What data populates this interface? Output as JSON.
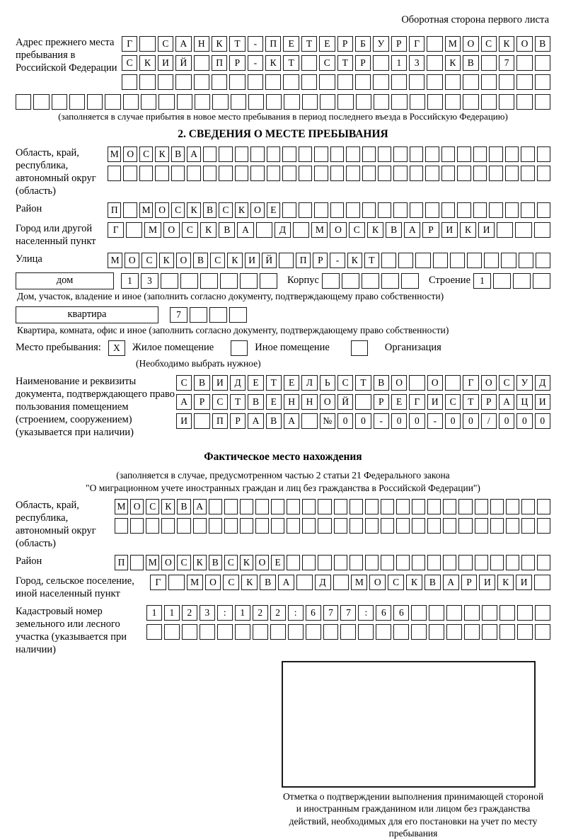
{
  "page": {
    "header_note": "Оборотная сторона первого листа"
  },
  "prev_address": {
    "label": "Адрес прежнего места пребывания в Российской Федерации",
    "rows": [
      [
        "Г",
        "",
        "С",
        "А",
        "Н",
        "К",
        "Т",
        "-",
        "П",
        "Е",
        "Т",
        "Е",
        "Р",
        "Б",
        "У",
        "Р",
        "Г",
        "",
        "М",
        "О",
        "С",
        "К",
        "О",
        "В"
      ],
      [
        "С",
        "К",
        "И",
        "Й",
        "",
        "П",
        "Р",
        "-",
        "К",
        "Т",
        "",
        "С",
        "Т",
        "Р",
        "",
        "1",
        "3",
        "",
        "К",
        "В",
        "",
        "7",
        "",
        ""
      ],
      [
        "",
        "",
        "",
        "",
        "",
        "",
        "",
        "",
        "",
        "",
        "",
        "",
        "",
        "",
        "",
        "",
        "",
        "",
        "",
        "",
        "",
        "",
        "",
        ""
      ]
    ],
    "full_row": [
      "",
      "",
      "",
      "",
      "",
      "",
      "",
      "",
      "",
      "",
      "",
      "",
      "",
      "",
      "",
      "",
      "",
      "",
      "",
      "",
      "",
      "",
      "",
      "",
      "",
      "",
      "",
      "",
      "",
      ""
    ],
    "note": "(заполняется в случае прибытия в новое место пребывания в период последнего въезда в Российскую Федерацию)"
  },
  "section2": {
    "title": "2. СВЕДЕНИЯ О МЕСТЕ ПРЕБЫВАНИЯ",
    "region": {
      "label": "Область, край, республика, автономный округ (область)",
      "rows": [
        [
          "М",
          "О",
          "С",
          "К",
          "В",
          "А",
          "",
          "",
          "",
          "",
          "",
          "",
          "",
          "",
          "",
          "",
          "",
          "",
          "",
          "",
          "",
          "",
          "",
          "",
          "",
          "",
          "",
          ""
        ],
        [
          "",
          "",
          "",
          "",
          "",
          "",
          "",
          "",
          "",
          "",
          "",
          "",
          "",
          "",
          "",
          "",
          "",
          "",
          "",
          "",
          "",
          "",
          "",
          "",
          "",
          "",
          "",
          ""
        ]
      ]
    },
    "district": {
      "label": "Район",
      "row": [
        "П",
        "",
        "М",
        "О",
        "С",
        "К",
        "В",
        "С",
        "К",
        "О",
        "Е",
        "",
        "",
        "",
        "",
        "",
        "",
        "",
        "",
        "",
        "",
        "",
        "",
        "",
        "",
        "",
        "",
        ""
      ]
    },
    "city": {
      "label": "Город или другой населенный пункт",
      "row": [
        "Г",
        "",
        "М",
        "О",
        "С",
        "К",
        "В",
        "А",
        "",
        "Д",
        "",
        "М",
        "О",
        "С",
        "К",
        "В",
        "А",
        "Р",
        "И",
        "К",
        "И",
        "",
        "",
        ""
      ]
    },
    "street": {
      "label": "Улица",
      "row": [
        "М",
        "О",
        "С",
        "К",
        "О",
        "В",
        "С",
        "К",
        "И",
        "Й",
        "",
        "П",
        "Р",
        "-",
        "К",
        "Т",
        "",
        "",
        "",
        "",
        "",
        "",
        "",
        "",
        "",
        ""
      ]
    },
    "house": {
      "house_label": "дом",
      "house_cells": [
        "1",
        "3",
        "",
        "",
        "",
        "",
        "",
        ""
      ],
      "korpus_label": "Корпус",
      "korpus_cells": [
        "",
        "",
        "",
        "",
        ""
      ],
      "stroenie_label": "Строение",
      "stroenie_cells": [
        "1",
        "",
        "",
        ""
      ]
    },
    "house_note": "Дом, участок, владение и иное (заполнить согласно документу, подтверждающему право собственности)",
    "apartment": {
      "label": "квартира",
      "cells": [
        "7",
        "",
        "",
        ""
      ]
    },
    "apartment_note": "Квартира, комната, офис и иное (заполнить согласно документу, подтверждающему право собственности)",
    "stay_type": {
      "label": "Место пребывания:",
      "options": [
        {
          "label": "Жилое помещение",
          "checked": "X"
        },
        {
          "label": "Иное помещение",
          "checked": ""
        },
        {
          "label": "Организация",
          "checked": ""
        }
      ],
      "note": "(Необходимо выбрать нужное)"
    },
    "doc": {
      "label": "Наименование и реквизиты документа, подтверждающего право пользования помещением (строением, сооружением) (указывается при наличии)",
      "rows": [
        [
          "С",
          "В",
          "И",
          "Д",
          "Е",
          "Т",
          "Е",
          "Л",
          "Ь",
          "С",
          "Т",
          "В",
          "О",
          "",
          "О",
          "",
          "Г",
          "О",
          "С",
          "У",
          "Д"
        ],
        [
          "А",
          "Р",
          "С",
          "Т",
          "В",
          "Е",
          "Н",
          "Н",
          "О",
          "Й",
          "",
          "Р",
          "Е",
          "Г",
          "И",
          "С",
          "Т",
          "Р",
          "А",
          "Ц",
          "И"
        ],
        [
          "И",
          "",
          "П",
          "Р",
          "А",
          "В",
          "А",
          "",
          "№",
          "0",
          "0",
          "-",
          "0",
          "0",
          "-",
          "0",
          "0",
          "/",
          "0",
          "0",
          "0"
        ]
      ]
    }
  },
  "actual_location": {
    "title": "Фактическое место нахождения",
    "note_line1": "(заполняется в случае, предусмотренном частью 2 статьи 21 Федерального закона",
    "note_line2": "\"О миграционном учете иностранных граждан и лиц без гражданства в Российской Федерации\")",
    "region": {
      "label": "Область, край, республика, автономный округ (область)",
      "rows": [
        [
          "М",
          "О",
          "С",
          "К",
          "В",
          "А",
          "",
          "",
          "",
          "",
          "",
          "",
          "",
          "",
          "",
          "",
          "",
          "",
          "",
          "",
          "",
          "",
          "",
          "",
          "",
          "",
          "",
          ""
        ],
        [
          "",
          "",
          "",
          "",
          "",
          "",
          "",
          "",
          "",
          "",
          "",
          "",
          "",
          "",
          "",
          "",
          "",
          "",
          "",
          "",
          "",
          "",
          "",
          "",
          "",
          "",
          "",
          ""
        ]
      ]
    },
    "district": {
      "label": "Район",
      "row": [
        "П",
        "",
        "М",
        "О",
        "С",
        "К",
        "В",
        "С",
        "К",
        "О",
        "Е",
        "",
        "",
        "",
        "",
        "",
        "",
        "",
        "",
        "",
        "",
        "",
        "",
        "",
        "",
        "",
        "",
        ""
      ]
    },
    "city": {
      "label": "Город, сельское поселение, иной населенный пункт",
      "row": [
        "Г",
        "",
        "М",
        "О",
        "С",
        "К",
        "В",
        "А",
        "",
        "Д",
        "",
        "М",
        "О",
        "С",
        "К",
        "В",
        "А",
        "Р",
        "И",
        "К",
        "И",
        ""
      ]
    },
    "cadastral": {
      "label": "Кадастровый номер земельного или лесного участка (указывается при наличии)",
      "rows": [
        [
          "1",
          "1",
          "2",
          "3",
          ":",
          "1",
          "2",
          "2",
          ":",
          "6",
          "7",
          "7",
          ":",
          "6",
          "6",
          "",
          "",
          "",
          "",
          "",
          "",
          "",
          ""
        ],
        [
          "",
          "",
          "",
          "",
          "",
          "",
          "",
          "",
          "",
          "",
          "",
          "",
          "",
          "",
          "",
          "",
          "",
          "",
          "",
          "",
          "",
          "",
          ""
        ]
      ]
    },
    "stamp_note": "Отметка о подтверждении выполнения принимающей стороной и иностранным гражданином или лицом без гражданства действий, необходимых для его постановки на учет по месту пребывания"
  }
}
